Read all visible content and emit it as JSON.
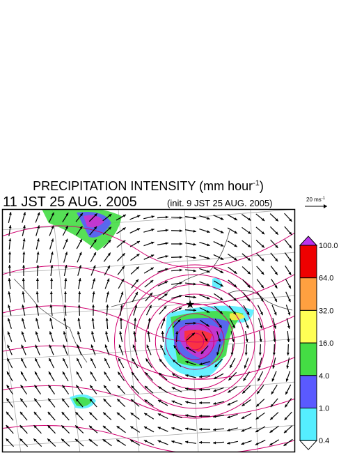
{
  "title": {
    "main": "PRECIPITATION INTENSITY (mm hour",
    "exponent": "-1",
    "close": ")"
  },
  "valid_time": "11 JST 25 AUG. 2005",
  "init_time": "(init. 9 JST 25 AUG. 2005)",
  "scale": {
    "label": "20 ms",
    "exponent": "-1"
  },
  "colorbar": {
    "labels": [
      "100.0",
      "64.0",
      "32.0",
      "16.0",
      "4.0",
      "1.0",
      "0.4"
    ]
  }
}
